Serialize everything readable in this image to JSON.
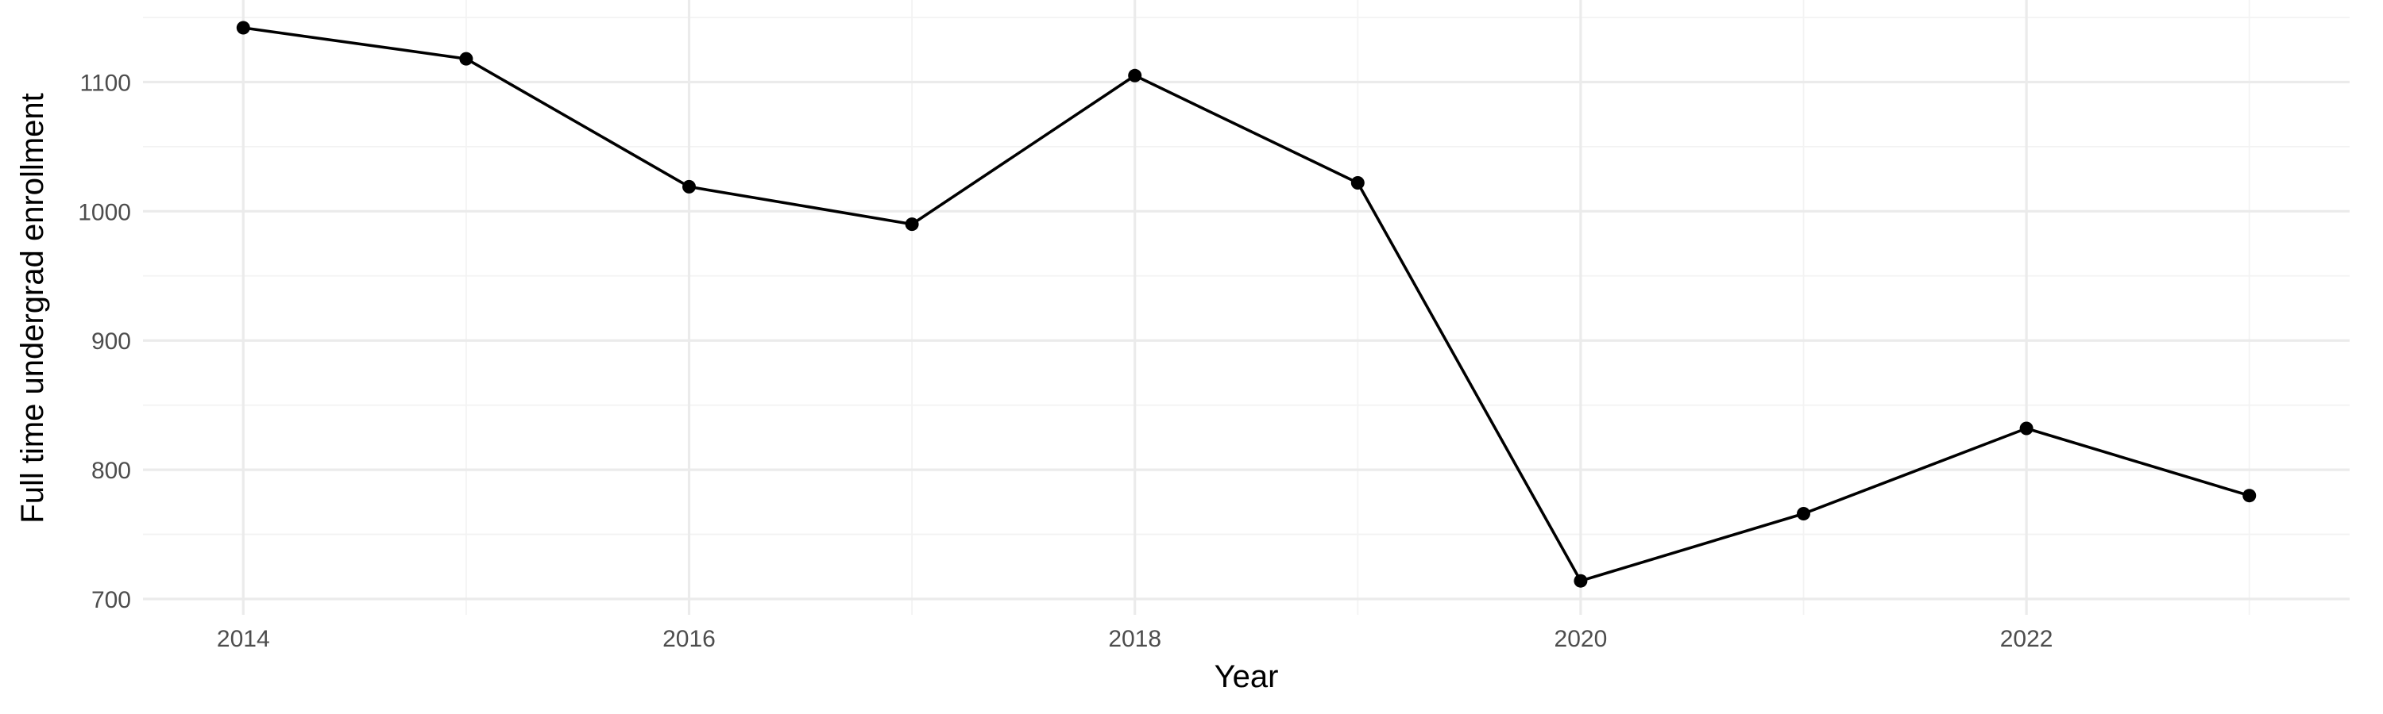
{
  "chart_data": {
    "type": "line",
    "title": "",
    "xlabel": "Year",
    "ylabel": "Full time undergrad enrollment",
    "x": [
      2014,
      2015,
      2016,
      2017,
      2018,
      2019,
      2020,
      2021,
      2022,
      2023
    ],
    "series": [
      {
        "values": [
          1142,
          1118,
          1019,
          990,
          1105,
          1022,
          714,
          766,
          832,
          780
        ]
      }
    ],
    "xlim": [
      2013.55,
      2023.45
    ],
    "ylim": [
      700,
      1150
    ],
    "x_ticks": [
      "2014",
      "2016",
      "2018",
      "2020",
      "2022"
    ],
    "y_ticks": [
      "700",
      "800",
      "900",
      "1000",
      "1100"
    ],
    "grid": true,
    "legend": "none",
    "line_color": "#000000"
  }
}
